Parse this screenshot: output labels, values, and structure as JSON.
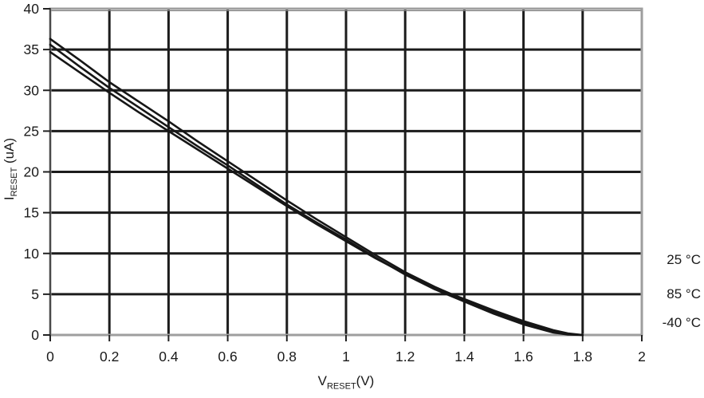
{
  "chart_data": {
    "type": "line",
    "title": "",
    "xlabel": "V_RESET(V)",
    "ylabel": "I_RESET (uA)",
    "xlabel_parts": {
      "base": "V",
      "sub": "RESET",
      "rest": "(V)"
    },
    "ylabel_parts": {
      "base": "I",
      "sub": "RESET",
      "rest": " (uA)"
    },
    "xlim": [
      0,
      2
    ],
    "ylim": [
      0,
      40
    ],
    "xticks": [
      0,
      0.2,
      0.4,
      0.6,
      0.8,
      1,
      1.2,
      1.4,
      1.6,
      1.8,
      2
    ],
    "xtick_labels": [
      "0",
      "0.2",
      "0.4",
      "0.6",
      "0.8",
      "1",
      "1.2",
      "1.4",
      "1.6",
      "1.8",
      "2"
    ],
    "yticks": [
      0,
      5,
      10,
      15,
      20,
      25,
      30,
      35,
      40
    ],
    "ytick_labels": [
      "0",
      "5",
      "10",
      "15",
      "20",
      "25",
      "30",
      "35",
      "40"
    ],
    "grid": true,
    "legend_position": "right-outside",
    "x": [
      0,
      0.1,
      0.2,
      0.3,
      0.4,
      0.5,
      0.6,
      0.7,
      0.8,
      0.9,
      1.0,
      1.1,
      1.2,
      1.3,
      1.4,
      1.5,
      1.6,
      1.7,
      1.75,
      1.8
    ],
    "series": [
      {
        "name": "25 °C",
        "values": [
          36.3,
          33.7,
          31.0,
          28.6,
          26.2,
          23.7,
          21.3,
          18.9,
          16.5,
          14.2,
          12.0,
          9.8,
          7.7,
          5.9,
          4.3,
          2.8,
          1.5,
          0.4,
          0.1,
          0
        ]
      },
      {
        "name": "85 °C",
        "values": [
          35.6,
          32.9,
          30.3,
          27.9,
          25.5,
          23.1,
          20.8,
          18.4,
          16.0,
          13.8,
          11.7,
          9.5,
          7.4,
          5.6,
          4.1,
          2.6,
          1.3,
          0.3,
          0.05,
          0
        ]
      },
      {
        "name": "-40 °C",
        "values": [
          34.7,
          32.2,
          29.7,
          27.3,
          25.0,
          22.7,
          20.4,
          18.1,
          15.8,
          13.6,
          11.5,
          9.4,
          7.5,
          5.8,
          4.4,
          3.0,
          1.7,
          0.6,
          0.2,
          0
        ]
      }
    ]
  },
  "colors": {
    "background": "#ffffff",
    "curve": "#161616",
    "grid": "#1c1c1c",
    "frame": "#9e9e9e",
    "axis": "#4a4a4a",
    "tick": "#222222",
    "text": "#1a1a1a"
  }
}
